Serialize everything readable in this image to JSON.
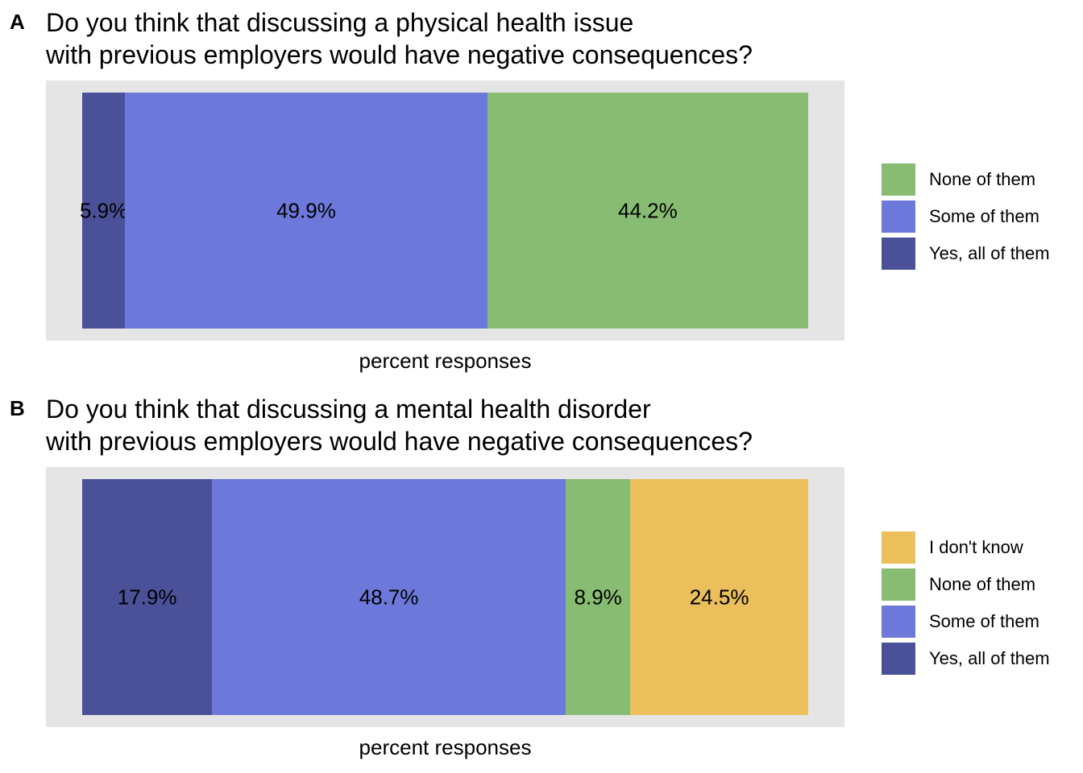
{
  "colors": {
    "Yes, all of them": "#4a5198",
    "Some of them": "#6d79da",
    "None of them": "#88bc72",
    "I don't know": "#eabf5c"
  },
  "chart_data": [
    {
      "type": "bar",
      "orientation": "horizontal-stacked",
      "tag": "A",
      "title_line1": "Do you think that discussing a physical health issue",
      "title_line2": "with previous employers would have negative consequences?",
      "xlabel": "percent responses",
      "ylabel": "",
      "legend_position": "right",
      "legend": [
        "None of them",
        "Some of them",
        "Yes, all of them"
      ],
      "series": [
        {
          "name": "Yes, all of them",
          "value": 5.9,
          "label": "5.9%"
        },
        {
          "name": "Some of them",
          "value": 49.9,
          "label": "49.9%"
        },
        {
          "name": "None of them",
          "value": 44.2,
          "label": "44.2%"
        }
      ]
    },
    {
      "type": "bar",
      "orientation": "horizontal-stacked",
      "tag": "B",
      "title_line1": "Do you think that discussing a mental health disorder",
      "title_line2": "with previous employers would have negative consequences?",
      "xlabel": "percent responses",
      "ylabel": "",
      "legend_position": "right",
      "legend": [
        "I don't know",
        "None of them",
        "Some of them",
        "Yes, all of them"
      ],
      "series": [
        {
          "name": "Yes, all of them",
          "value": 17.9,
          "label": "17.9%"
        },
        {
          "name": "Some of them",
          "value": 48.7,
          "label": "48.7%"
        },
        {
          "name": "None of them",
          "value": 8.9,
          "label": "8.9%"
        },
        {
          "name": "I don't know",
          "value": 24.5,
          "label": "24.5%"
        }
      ]
    }
  ]
}
